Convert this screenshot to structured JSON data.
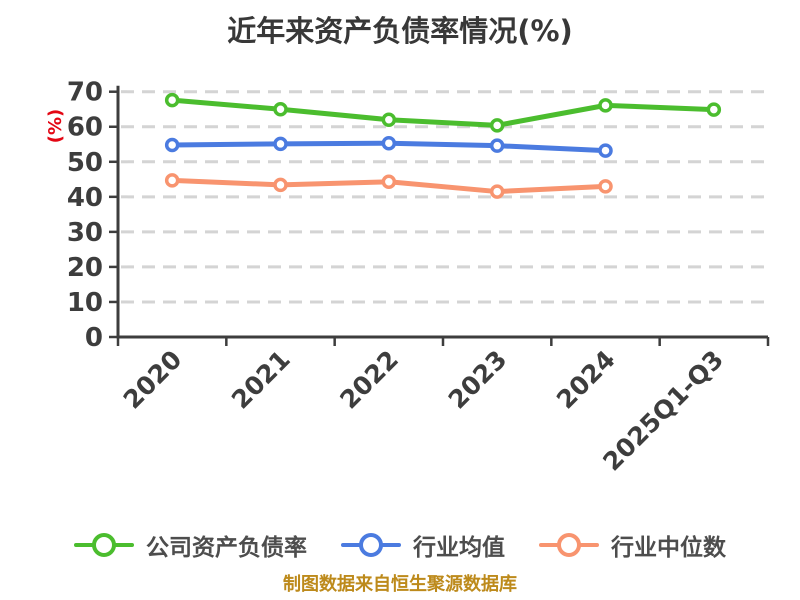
{
  "title": "近年来资产负债率情况(%)",
  "footer": "制图数据来自恒生聚源数据库",
  "colors": {
    "background": "#ffffff",
    "title": "#383838",
    "axis": "#3d3d3d",
    "tick_label": "#3d3d3d",
    "grid": "#d4d4d4",
    "ylabel": "#e30613",
    "legend_text": "#4d4d4d",
    "footer": "#bd8a1b",
    "company": "#4bbd2e",
    "industry_avg": "#4b7be0",
    "industry_median": "#f8946f"
  },
  "chart_data": {
    "type": "line",
    "title": "近年来资产负债率情况(%)",
    "ylabel": "(%)",
    "xlabel": "",
    "categories": [
      "2020",
      "2021",
      "2022",
      "2023",
      "2024",
      "2025Q1-Q3"
    ],
    "series": [
      {
        "name": "公司资产负债率",
        "color": "#4bbd2e",
        "marker": "circle",
        "values": [
          67.6,
          65.0,
          62.0,
          60.4,
          66.1,
          64.9
        ]
      },
      {
        "name": "行业均值",
        "color": "#4b7be0",
        "marker": "circle",
        "values": [
          54.8,
          55.1,
          55.3,
          54.6,
          53.2,
          null
        ]
      },
      {
        "name": "行业中位数",
        "color": "#f8946f",
        "marker": "circle",
        "values": [
          44.7,
          43.4,
          44.3,
          41.5,
          43.0,
          null
        ]
      }
    ],
    "ylim": [
      0,
      70
    ],
    "yticks": [
      0,
      10,
      20,
      30,
      40,
      50,
      60,
      70
    ],
    "grid": true,
    "grid_style": "dashed",
    "legend_position": "bottom"
  }
}
